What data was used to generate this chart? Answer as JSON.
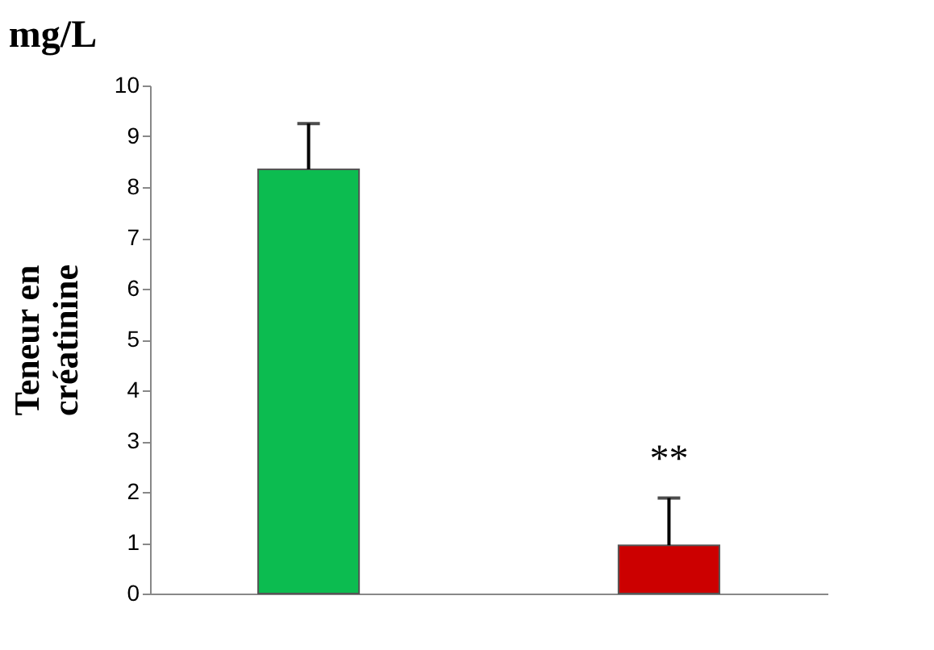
{
  "chart_data": {
    "type": "bar",
    "title": "mg/L",
    "ylabel": "Teneur en\ncréatinine",
    "categories": [
      null,
      null
    ],
    "values": [
      8.35,
      0.95
    ],
    "colors": [
      "#0cbc50",
      "#cc0000"
    ],
    "errors": [
      [
        8.35,
        9.25
      ],
      [
        0.95,
        1.88
      ]
    ],
    "ylim": [
      0,
      10
    ],
    "yticks": [
      0,
      1,
      2,
      3,
      4,
      5,
      6,
      7,
      8,
      9,
      10
    ],
    "grid": false,
    "legend": false,
    "annotations": [
      "**"
    ]
  }
}
